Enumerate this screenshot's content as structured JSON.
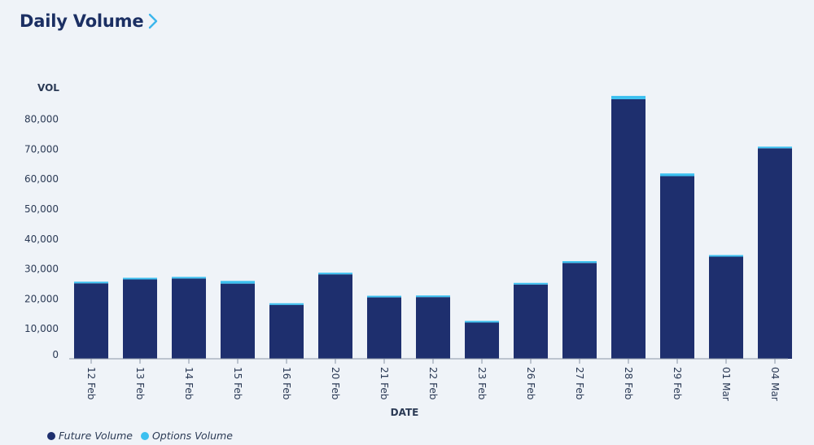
{
  "header": {
    "title": "Daily Volume",
    "chevron_icon": "chevron-right-icon",
    "chevron_color": "#3cb6ec"
  },
  "colors": {
    "future": "#1e2f6e",
    "options": "#3cc0f0",
    "axis": "#8a94a6",
    "text": "#2b3a55",
    "background": "#eff3f8"
  },
  "legend": {
    "items": [
      {
        "label": "Future Volume",
        "color": "#1e2f6e"
      },
      {
        "label": "Options Volume",
        "color": "#3cc0f0"
      }
    ]
  },
  "chart_data": {
    "type": "bar",
    "stacked": true,
    "title": "Daily Volume",
    "ylabel": "VOL",
    "xlabel": "DATE",
    "ylim": [
      0,
      90000
    ],
    "yticks": [
      0,
      10000,
      20000,
      30000,
      40000,
      50000,
      60000,
      70000,
      80000
    ],
    "ytick_labels": [
      "0",
      "10,000",
      "20,000",
      "30,000",
      "40,000",
      "50,000",
      "60,000",
      "70,000",
      "80,000"
    ],
    "grid": false,
    "legend_position": "bottom-left",
    "categories": [
      "12 Feb",
      "13 Feb",
      "14 Feb",
      "15 Feb",
      "16 Feb",
      "20 Feb",
      "21 Feb",
      "22 Feb",
      "23 Feb",
      "26 Feb",
      "27 Feb",
      "28 Feb",
      "29 Feb",
      "01 Mar",
      "04 Mar"
    ],
    "series": [
      {
        "name": "Future Volume",
        "values": [
          25200,
          26500,
          26800,
          25100,
          18000,
          28200,
          20500,
          20600,
          12100,
          24800,
          32000,
          86700,
          61000,
          34100,
          70300
        ]
      },
      {
        "name": "Options Volume",
        "values": [
          300,
          300,
          500,
          900,
          300,
          400,
          200,
          200,
          100,
          300,
          600,
          1100,
          900,
          400,
          300
        ]
      }
    ]
  }
}
